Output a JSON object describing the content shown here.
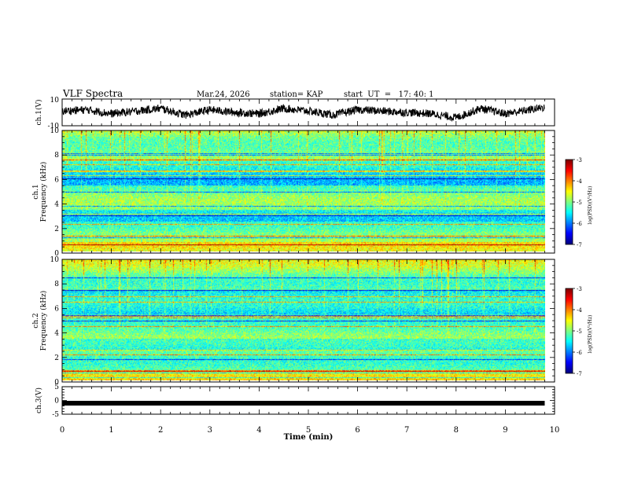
{
  "header": {
    "title": "VLF Spectra",
    "date": "Mar.24, 2026",
    "station": "station= KAP",
    "start": "start  UT  =   17: 40: 1"
  },
  "chart_data": [
    {
      "type": "line",
      "name": "ch1-waveform",
      "ylabel": "ch.1(V)",
      "ylim": [
        -10,
        10
      ],
      "yticks": [
        "10",
        "-10"
      ],
      "xlim": [
        0,
        9.8
      ],
      "style": "noisy waveform, mean ~0, amplitude ~6 V",
      "x": [
        0,
        0.5,
        1.0,
        1.5,
        2.0,
        2.5,
        3.0,
        3.5,
        4.0,
        4.5,
        5.0,
        5.5,
        6.0,
        6.5,
        7.0,
        7.5,
        8.0,
        8.5,
        9.0,
        9.5,
        9.8
      ],
      "values": [
        1,
        2,
        -1,
        1,
        3,
        -2,
        2,
        0,
        -1,
        3,
        1,
        -2,
        2,
        1,
        0,
        -1,
        -4,
        3,
        -1,
        2,
        4
      ]
    },
    {
      "type": "heatmap",
      "name": "ch1-spectrogram",
      "ylabel": "Frequency (kHz)",
      "channel_label": "ch.1",
      "ylim": [
        0,
        10
      ],
      "yticks": [
        "0",
        "2",
        "4",
        "6",
        "8",
        "10"
      ],
      "colorbar": {
        "label": "log(PSD)(V²/Hz)",
        "range": [
          -7,
          -3
        ],
        "ticks": [
          "-3",
          "-4",
          "-5",
          "-6",
          "-7"
        ]
      }
    },
    {
      "type": "heatmap",
      "name": "ch2-spectrogram",
      "ylabel": "Frequency (kHz)",
      "channel_label": "ch.2",
      "ylim": [
        0,
        10
      ],
      "yticks": [
        "0",
        "2",
        "4",
        "6",
        "8",
        "10"
      ],
      "colorbar": {
        "label": "log(PSD)(V²/Hz)",
        "range": [
          -7,
          -3
        ],
        "ticks": [
          "-3",
          "-4",
          "-5",
          "-6",
          "-7"
        ]
      }
    },
    {
      "type": "line",
      "name": "ch3-waveform",
      "ylabel": "ch.3(V)",
      "ylim": [
        -5,
        5
      ],
      "yticks": [
        "5",
        "0",
        "-5"
      ],
      "style": "flat thick band near -1 V",
      "x": [
        0,
        9.8
      ],
      "values": [
        -1,
        -1
      ]
    }
  ],
  "xaxis": {
    "label": "Time (min)",
    "range": [
      0,
      10
    ],
    "ticks": [
      "0",
      "1",
      "2",
      "3",
      "4",
      "5",
      "6",
      "7",
      "8",
      "9",
      "10"
    ]
  }
}
